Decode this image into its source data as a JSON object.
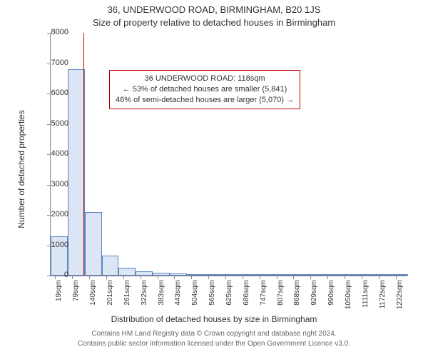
{
  "titles": {
    "line1": "36, UNDERWOOD ROAD, BIRMINGHAM, B20 1JS",
    "line2": "Size of property relative to detached houses in Birmingham"
  },
  "ylabel": "Number of detached properties",
  "xlabel": "Distribution of detached houses by size in Birmingham",
  "footer": {
    "line1": "Contains HM Land Registry data © Crown copyright and database right 2024.",
    "line2": "Contains public sector information licensed under the Open Government Licence v3.0."
  },
  "chart": {
    "type": "histogram",
    "background_color": "#ffffff",
    "axis_color": "#888888",
    "bar_fill": "#dbe5f4",
    "bar_stroke": "#5b84c4",
    "vline_color": "#c00000",
    "vline_x": 118,
    "xlim": [
      0,
      1270
    ],
    "ylim": [
      0,
      8000
    ],
    "ytick_step": 1000,
    "xtick_step": 60.6,
    "xtick_start": 19,
    "xtick_labels": [
      "19sqm",
      "79sqm",
      "140sqm",
      "201sqm",
      "261sqm",
      "322sqm",
      "383sqm",
      "443sqm",
      "504sqm",
      "565sqm",
      "625sqm",
      "686sqm",
      "747sqm",
      "807sqm",
      "868sqm",
      "929sqm",
      "990sqm",
      "1050sqm",
      "1111sqm",
      "1172sqm",
      "1232sqm"
    ],
    "bars": [
      {
        "x0": 0,
        "x1": 60.6,
        "y": 1300
      },
      {
        "x0": 60.6,
        "x1": 121.2,
        "y": 6800
      },
      {
        "x0": 121.2,
        "x1": 181.8,
        "y": 2100
      },
      {
        "x0": 181.8,
        "x1": 242.4,
        "y": 650
      },
      {
        "x0": 242.4,
        "x1": 303.0,
        "y": 260
      },
      {
        "x0": 303.0,
        "x1": 363.6,
        "y": 140
      },
      {
        "x0": 363.6,
        "x1": 424.2,
        "y": 100
      },
      {
        "x0": 424.2,
        "x1": 484.8,
        "y": 60
      },
      {
        "x0": 484.8,
        "x1": 545.4,
        "y": 45
      },
      {
        "x0": 545.4,
        "x1": 606.0,
        "y": 40
      },
      {
        "x0": 606.0,
        "x1": 666.6,
        "y": 25
      },
      {
        "x0": 666.6,
        "x1": 727.2,
        "y": 18
      },
      {
        "x0": 727.2,
        "x1": 787.8,
        "y": 12
      },
      {
        "x0": 787.8,
        "x1": 848.4,
        "y": 9
      },
      {
        "x0": 848.4,
        "x1": 909.0,
        "y": 7
      },
      {
        "x0": 909.0,
        "x1": 969.6,
        "y": 5
      },
      {
        "x0": 969.6,
        "x1": 1030.2,
        "y": 4
      },
      {
        "x0": 1030.2,
        "x1": 1090.8,
        "y": 3
      },
      {
        "x0": 1090.8,
        "x1": 1151.4,
        "y": 2
      },
      {
        "x0": 1151.4,
        "x1": 1212.0,
        "y": 2
      },
      {
        "x0": 1212.0,
        "x1": 1272.6,
        "y": 1
      }
    ]
  },
  "info_box": {
    "line1": "36 UNDERWOOD ROAD: 118sqm",
    "line2": "← 53% of detached houses are smaller (5,841)",
    "line3": "46% of semi-detached houses are larger (5,070) →",
    "border_color": "#c00000"
  },
  "font": {
    "title_size": 13,
    "label_size": 12,
    "tick_size": 11,
    "xtick_size": 10,
    "footer_size": 10,
    "info_size": 11
  }
}
